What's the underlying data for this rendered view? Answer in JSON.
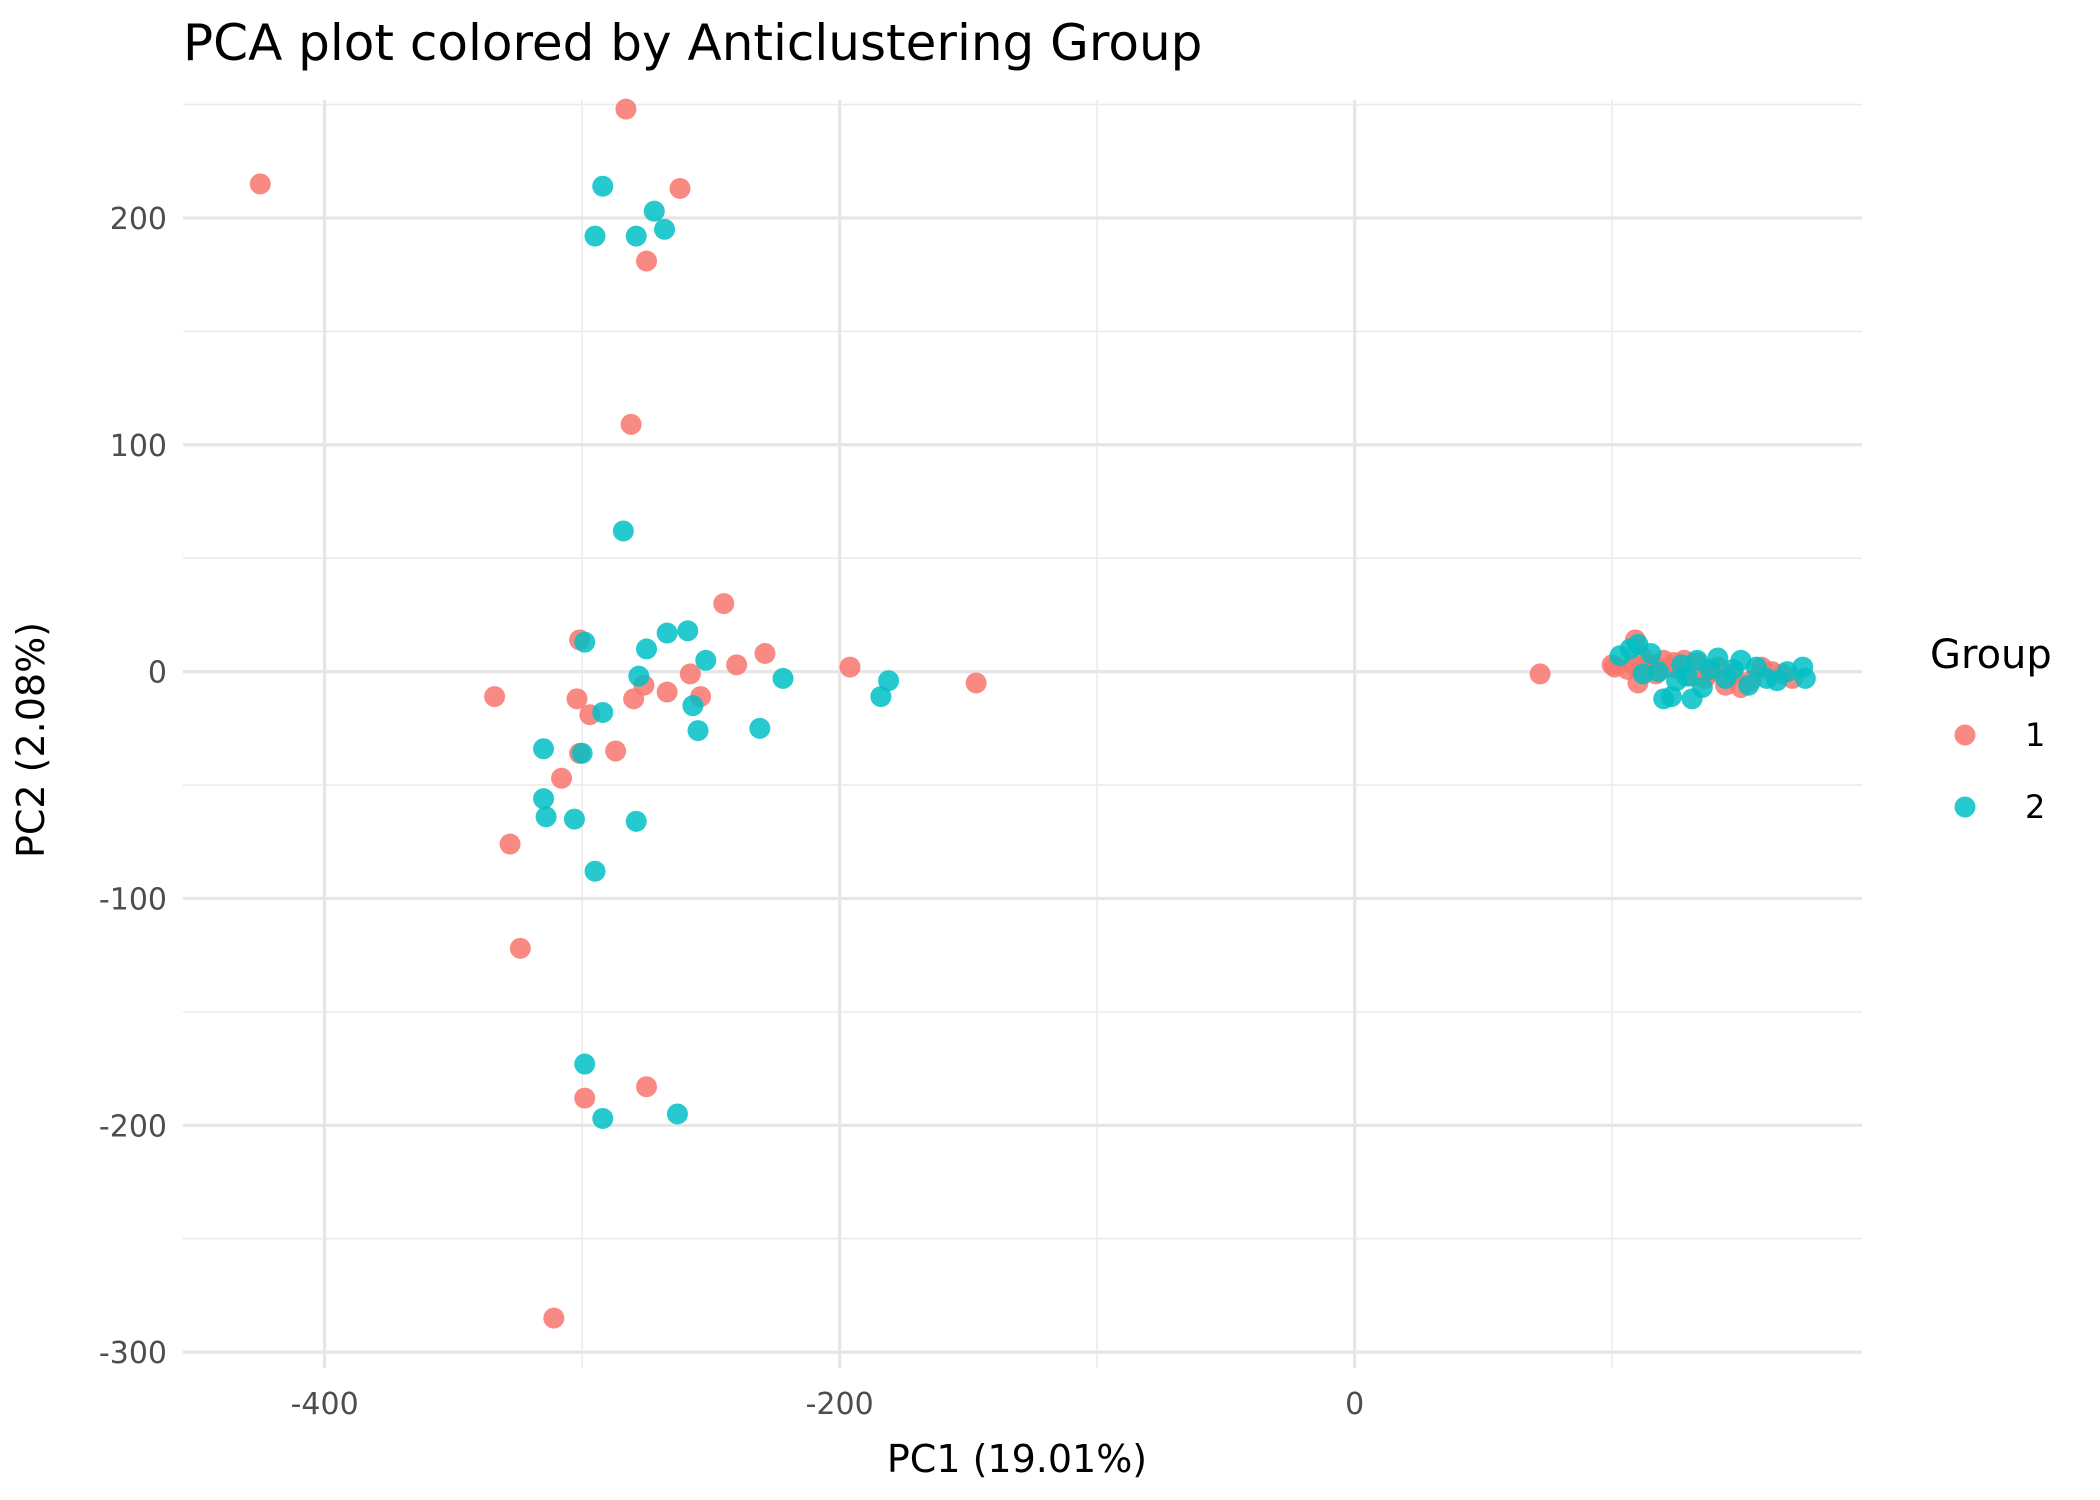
{
  "chart_data": {
    "type": "scatter",
    "title": "PCA plot colored by Anticlustering Group",
    "xlabel": "PC1 (19.01%)",
    "ylabel": "PC2 (2.08%)",
    "xlim": [
      -455,
      197
    ],
    "ylim": [
      -307,
      252
    ],
    "x_ticks": [
      -400,
      -200,
      0
    ],
    "x_tick_labels": [
      "-400",
      "-200",
      "0"
    ],
    "x_minor_ticks": [
      -300,
      -100,
      100
    ],
    "y_ticks": [
      -300,
      -200,
      -100,
      0,
      100,
      200
    ],
    "y_tick_labels": [
      "-300",
      "-200",
      "-100",
      "0",
      "100",
      "200"
    ],
    "y_minor_ticks": [
      -250,
      -150,
      -50,
      50,
      150,
      250
    ],
    "grid": true,
    "legend": {
      "title": "Group",
      "position": "right"
    },
    "series": [
      {
        "name": "1",
        "color": "#F8766D",
        "points": [
          [
            -283,
            248
          ],
          [
            -425,
            215
          ],
          [
            -262,
            213
          ],
          [
            -275,
            181
          ],
          [
            -281,
            109
          ],
          [
            -245,
            30
          ],
          [
            -301,
            14
          ],
          [
            -229,
            8
          ],
          [
            -196,
            2
          ],
          [
            -240,
            3
          ],
          [
            -147,
            -5
          ],
          [
            -258,
            -1
          ],
          [
            -276,
            -6
          ],
          [
            -267,
            -9
          ],
          [
            -254,
            -11
          ],
          [
            -302,
            -12
          ],
          [
            -280,
            -12
          ],
          [
            -334,
            -11
          ],
          [
            -297,
            -19
          ],
          [
            -301,
            -36
          ],
          [
            -287,
            -35
          ],
          [
            -308,
            -47
          ],
          [
            -328,
            -76
          ],
          [
            -324,
            -122
          ],
          [
            -275,
            -183
          ],
          [
            -299,
            -188
          ],
          [
            -311,
            -285
          ],
          [
            72,
            -1
          ],
          [
            100,
            3
          ],
          [
            101,
            2
          ],
          [
            106,
            1
          ],
          [
            108,
            3
          ],
          [
            109,
            14
          ],
          [
            110,
            -5
          ],
          [
            112,
            6
          ],
          [
            113,
            3
          ],
          [
            116,
            3
          ],
          [
            117,
            -1
          ],
          [
            120,
            5
          ],
          [
            122,
            2
          ],
          [
            124,
            4
          ],
          [
            126,
            1
          ],
          [
            128,
            5
          ],
          [
            131,
            -2
          ],
          [
            133,
            4
          ],
          [
            136,
            -3
          ],
          [
            139,
            0
          ],
          [
            141,
            2
          ],
          [
            144,
            -6
          ],
          [
            147,
            -1
          ],
          [
            150,
            -7
          ],
          [
            154,
            -4
          ],
          [
            158,
            2
          ],
          [
            162,
            0
          ],
          [
            166,
            -1
          ],
          [
            170,
            -3
          ]
        ]
      },
      {
        "name": "2",
        "color": "#00BFC4",
        "points": [
          [
            -292,
            214
          ],
          [
            -272,
            203
          ],
          [
            -268,
            195
          ],
          [
            -295,
            192
          ],
          [
            -279,
            192
          ],
          [
            -284,
            62
          ],
          [
            -299,
            13
          ],
          [
            -275,
            10
          ],
          [
            -267,
            17
          ],
          [
            -259,
            18
          ],
          [
            -252,
            5
          ],
          [
            -278,
            -2
          ],
          [
            -222,
            -3
          ],
          [
            -181,
            -4
          ],
          [
            -184,
            -11
          ],
          [
            -257,
            -15
          ],
          [
            -292,
            -18
          ],
          [
            -315,
            -34
          ],
          [
            -300,
            -36
          ],
          [
            -255,
            -26
          ],
          [
            -231,
            -25
          ],
          [
            -315,
            -56
          ],
          [
            -314,
            -64
          ],
          [
            -303,
            -65
          ],
          [
            -279,
            -66
          ],
          [
            -295,
            -88
          ],
          [
            -299,
            -173
          ],
          [
            -292,
            -197
          ],
          [
            -263,
            -195
          ],
          [
            103,
            7
          ],
          [
            107,
            10
          ],
          [
            110,
            12
          ],
          [
            112,
            -1
          ],
          [
            115,
            8
          ],
          [
            118,
            0
          ],
          [
            120,
            -12
          ],
          [
            123,
            -11
          ],
          [
            125,
            -4
          ],
          [
            127,
            3
          ],
          [
            129,
            -2
          ],
          [
            131,
            -12
          ],
          [
            133,
            5
          ],
          [
            135,
            -7
          ],
          [
            138,
            1
          ],
          [
            141,
            6
          ],
          [
            144,
            -3
          ],
          [
            147,
            1
          ],
          [
            150,
            5
          ],
          [
            153,
            -6
          ],
          [
            156,
            2
          ],
          [
            160,
            -3
          ],
          [
            164,
            -4
          ],
          [
            168,
            0
          ],
          [
            174,
            2
          ],
          [
            175,
            -3
          ]
        ]
      }
    ]
  }
}
